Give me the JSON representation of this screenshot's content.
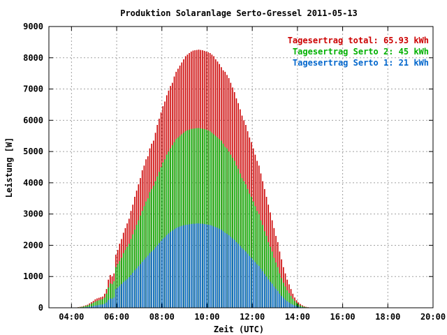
{
  "chart_data": {
    "type": "bar",
    "title": "Produktion Solaranlage Serto-Gressel 2011-05-13",
    "xlabel": "Zeit (UTC)",
    "ylabel": "Leistung [W]",
    "xlim": [
      3.0,
      20.0
    ],
    "ylim": [
      0,
      9000
    ],
    "grid": true,
    "legend_position": "top-right",
    "x_ticks": [
      {
        "value": 4,
        "label": "04:00"
      },
      {
        "value": 6,
        "label": "06:00"
      },
      {
        "value": 8,
        "label": "08:00"
      },
      {
        "value": 10,
        "label": "10:00"
      },
      {
        "value": 12,
        "label": "12:00"
      },
      {
        "value": 14,
        "label": "14:00"
      },
      {
        "value": 16,
        "label": "16:00"
      },
      {
        "value": 18,
        "label": "18:00"
      },
      {
        "value": 20,
        "label": "20:00"
      }
    ],
    "y_ticks": [
      {
        "value": 0,
        "label": "0"
      },
      {
        "value": 1000,
        "label": "1000"
      },
      {
        "value": 2000,
        "label": "2000"
      },
      {
        "value": 3000,
        "label": "3000"
      },
      {
        "value": 4000,
        "label": "4000"
      },
      {
        "value": 5000,
        "label": "5000"
      },
      {
        "value": 6000,
        "label": "6000"
      },
      {
        "value": 7000,
        "label": "7000"
      },
      {
        "value": 8000,
        "label": "8000"
      },
      {
        "value": 9000,
        "label": "9000"
      }
    ],
    "legend": [
      {
        "label": "Tagesertrag total: 65.93 kWh",
        "color": "#cc0000"
      },
      {
        "label": "Tagesertrag Serto 2: 45 kWh",
        "color": "#00b000"
      },
      {
        "label": "Tagesertrag Serto 1: 21 kWh",
        "color": "#0066cc"
      }
    ],
    "sampling": {
      "start_hour": 4.3,
      "step_hours": 0.0833
    },
    "series": [
      {
        "name": "Tagesertrag total: 65.93 kWh",
        "color": "#cc0000",
        "values": [
          20,
          30,
          40,
          60,
          80,
          100,
          140,
          180,
          220,
          270,
          300,
          320,
          340,
          360,
          450,
          600,
          900,
          1050,
          1000,
          1100,
          1700,
          1850,
          2050,
          2200,
          2400,
          2550,
          2700,
          2850,
          3100,
          3300,
          3550,
          3750,
          3950,
          4150,
          4400,
          4550,
          4750,
          4850,
          5100,
          5250,
          5350,
          5600,
          5850,
          6050,
          6250,
          6450,
          6600,
          6800,
          6950,
          7100,
          7200,
          7400,
          7550,
          7650,
          7750,
          7850,
          7950,
          8050,
          8100,
          8150,
          8200,
          8230,
          8240,
          8250,
          8260,
          8250,
          8240,
          8220,
          8200,
          8180,
          8150,
          8100,
          8050,
          7950,
          7880,
          7800,
          7700,
          7600,
          7550,
          7450,
          7350,
          7200,
          7050,
          6900,
          6700,
          6550,
          6350,
          6150,
          6000,
          5850,
          5650,
          5450,
          5300,
          5100,
          4900,
          4700,
          4550,
          4300,
          4050,
          3800,
          3550,
          3300,
          3050,
          2800,
          2550,
          2300,
          2100,
          1800,
          1550,
          1300,
          1100,
          900,
          750,
          600,
          450,
          330,
          240,
          170,
          120,
          80,
          50,
          30,
          20,
          10
        ]
      },
      {
        "name": "Tagesertrag Serto 2: 45 kWh",
        "color": "#00b000",
        "values": [
          15,
          20,
          30,
          45,
          60,
          75,
          100,
          130,
          160,
          190,
          220,
          240,
          260,
          280,
          330,
          450,
          650,
          780,
          760,
          850,
          1300,
          1400,
          1500,
          1600,
          1750,
          1850,
          1950,
          2050,
          2200,
          2350,
          2500,
          2650,
          2800,
          2950,
          3100,
          3250,
          3400,
          3500,
          3700,
          3800,
          3900,
          4050,
          4200,
          4350,
          4500,
          4650,
          4750,
          4900,
          5000,
          5100,
          5200,
          5300,
          5400,
          5450,
          5500,
          5550,
          5600,
          5650,
          5680,
          5700,
          5720,
          5730,
          5740,
          5750,
          5750,
          5740,
          5730,
          5720,
          5700,
          5680,
          5650,
          5600,
          5550,
          5500,
          5450,
          5400,
          5350,
          5250,
          5150,
          5100,
          5000,
          4900,
          4800,
          4700,
          4550,
          4450,
          4300,
          4150,
          4050,
          3950,
          3800,
          3650,
          3550,
          3400,
          3250,
          3100,
          3000,
          2800,
          2650,
          2450,
          2300,
          2100,
          1950,
          1800,
          1600,
          1450,
          1300,
          1100,
          950,
          800,
          680,
          560,
          470,
          380,
          290,
          220,
          160,
          110,
          75,
          50,
          30,
          20,
          12,
          6
        ]
      },
      {
        "name": "Tagesertrag Serto 1: 21 kWh",
        "color": "#0066cc",
        "values": [
          5,
          8,
          10,
          15,
          20,
          25,
          35,
          45,
          55,
          70,
          80,
          90,
          100,
          110,
          130,
          170,
          250,
          300,
          290,
          330,
          600,
          650,
          700,
          760,
          820,
          870,
          920,
          980,
          1050,
          1120,
          1200,
          1260,
          1330,
          1400,
          1470,
          1540,
          1610,
          1670,
          1750,
          1800,
          1850,
          1930,
          2000,
          2070,
          2140,
          2210,
          2260,
          2330,
          2380,
          2430,
          2470,
          2510,
          2550,
          2580,
          2600,
          2620,
          2640,
          2650,
          2660,
          2670,
          2680,
          2690,
          2690,
          2700,
          2700,
          2690,
          2690,
          2680,
          2670,
          2660,
          2650,
          2630,
          2600,
          2580,
          2560,
          2530,
          2500,
          2450,
          2400,
          2370,
          2320,
          2270,
          2220,
          2170,
          2100,
          2050,
          1980,
          1910,
          1850,
          1800,
          1730,
          1660,
          1600,
          1530,
          1460,
          1390,
          1340,
          1250,
          1170,
          1080,
          1000,
          910,
          830,
          770,
          680,
          610,
          540,
          450,
          380,
          320,
          260,
          210,
          170,
          130,
          100,
          75,
          55,
          38,
          25,
          16,
          10,
          6,
          3,
          1
        ]
      }
    ]
  }
}
